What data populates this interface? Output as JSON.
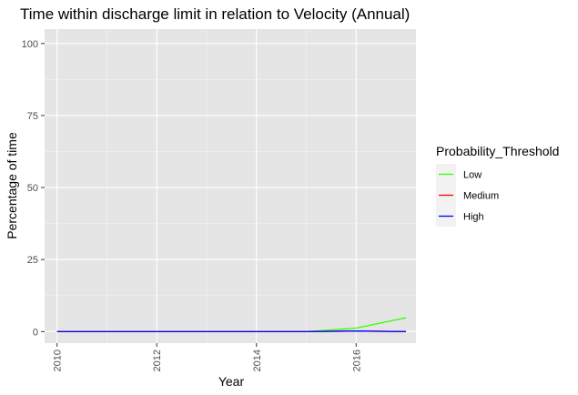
{
  "chart_data": {
    "type": "line",
    "title": "Time within discharge limit in relation to Velocity (Annual)",
    "xlabel": "Year",
    "ylabel": "Percentage of time",
    "xlim": [
      2009.75,
      2017.2
    ],
    "ylim": [
      -4,
      105
    ],
    "x_ticks": [
      2010,
      2012,
      2014,
      2016
    ],
    "y_ticks": [
      0,
      25,
      50,
      75,
      100
    ],
    "grid": true,
    "legend": {
      "title": "Probability_Threshold",
      "placement": "right"
    },
    "x": [
      2010,
      2011,
      2012,
      2013,
      2014,
      2015,
      2016,
      2017
    ],
    "series": [
      {
        "name": "Low",
        "color": "#33ff00",
        "values": [
          0,
          0,
          0,
          0,
          0,
          0,
          1.2,
          4.8
        ]
      },
      {
        "name": "Medium",
        "color": "#ff0000",
        "values": [
          0,
          0,
          0,
          0,
          0,
          0,
          0.2,
          0
        ]
      },
      {
        "name": "High",
        "color": "#0000ff",
        "values": [
          0,
          0,
          0,
          0,
          0,
          0,
          0.2,
          0
        ]
      }
    ]
  }
}
